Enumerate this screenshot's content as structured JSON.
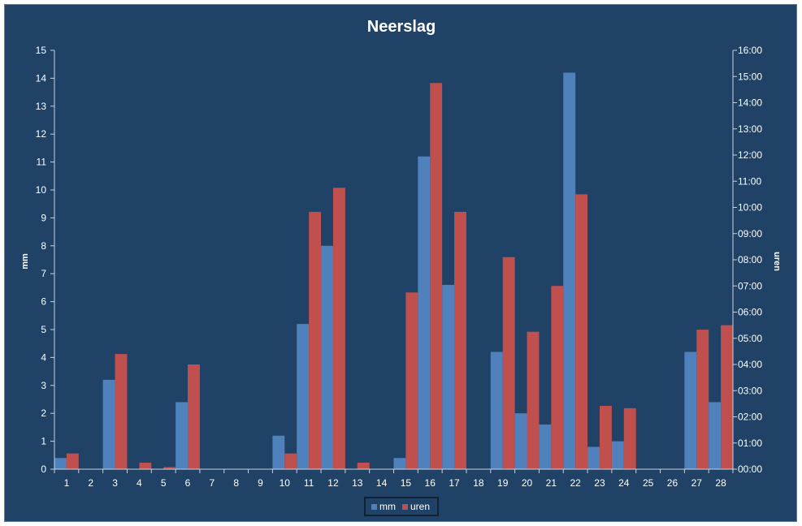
{
  "chart_data": {
    "type": "bar",
    "title": "Neerslag",
    "xlabel": "",
    "ylabel": "mm",
    "y2label": "uren",
    "categories": [
      "1",
      "2",
      "3",
      "4",
      "5",
      "6",
      "7",
      "8",
      "9",
      "10",
      "11",
      "12",
      "13",
      "14",
      "15",
      "16",
      "17",
      "18",
      "19",
      "20",
      "21",
      "22",
      "23",
      "24",
      "25",
      "26",
      "27",
      "28"
    ],
    "ylim": [
      0,
      15
    ],
    "y_ticks": [
      "0",
      "1",
      "2",
      "3",
      "4",
      "5",
      "6",
      "7",
      "8",
      "9",
      "10",
      "11",
      "12",
      "13",
      "14",
      "15"
    ],
    "y2lim": [
      0,
      16
    ],
    "y2_ticks": [
      "00:00",
      "01:00",
      "02:00",
      "03:00",
      "04:00",
      "05:00",
      "06:00",
      "07:00",
      "08:00",
      "09:00",
      "10:00",
      "11:00",
      "12:00",
      "13:00",
      "14:00",
      "15:00",
      "16:00"
    ],
    "series": [
      {
        "name": "mm",
        "axis": "left",
        "color": "#4f81bd",
        "values": [
          0.4,
          0,
          3.2,
          0,
          0,
          2.4,
          0,
          0,
          0,
          1.2,
          5.2,
          8.0,
          0,
          0,
          0.4,
          11.2,
          6.6,
          0,
          4.2,
          2.0,
          1.6,
          14.2,
          0.8,
          1.0,
          0,
          0,
          4.2,
          2.4
        ]
      },
      {
        "name": "uren",
        "axis": "right",
        "color": "#c0504d",
        "values": [
          0.6,
          0,
          4.4,
          0.25,
          0.08,
          4.0,
          0,
          0,
          0,
          0.6,
          9.83,
          10.75,
          0.25,
          0,
          6.75,
          14.75,
          9.83,
          0,
          8.1,
          5.25,
          7.0,
          10.5,
          2.42,
          2.33,
          0,
          0,
          5.33,
          5.5
        ]
      }
    ],
    "legend_position": "bottom",
    "grid": false
  },
  "colors": {
    "background": "#1f4266",
    "text": "#ffffff",
    "axis": "#c8d3df"
  }
}
